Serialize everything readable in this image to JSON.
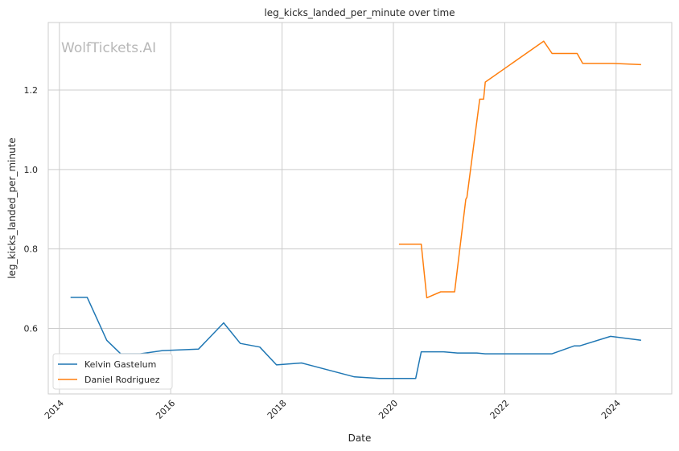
{
  "chart_data": {
    "type": "line",
    "title": "leg_kicks_landed_per_minute over time",
    "xlabel": "Date",
    "ylabel": "leg_kicks_landed_per_minute",
    "watermark": "WolfTickets.AI",
    "xlim": [
      2013.8,
      2025.0
    ],
    "ylim": [
      0.435,
      1.37
    ],
    "x_ticks": [
      2014,
      2016,
      2018,
      2020,
      2022,
      2024
    ],
    "x_tick_labels": [
      "2014",
      "2016",
      "2018",
      "2020",
      "2022",
      "2024"
    ],
    "y_ticks": [
      0.6,
      0.8,
      1.0,
      1.2
    ],
    "y_tick_labels": [
      "0.6",
      "0.8",
      "1.0",
      "1.2"
    ],
    "grid": true,
    "legend_position": "lower-left",
    "series": [
      {
        "name": "Kelvin Gastelum",
        "color": "#1f77b4",
        "x": [
          2014.2,
          2014.5,
          2014.85,
          2015.1,
          2015.45,
          2015.85,
          2016.5,
          2016.95,
          2017.25,
          2017.6,
          2017.9,
          2018.35,
          2019.3,
          2019.75,
          2020.4,
          2020.5,
          2020.9,
          2021.15,
          2021.5,
          2021.65,
          2022.0,
          2022.85,
          2023.25,
          2023.35,
          2023.9,
          2024.45
        ],
        "y": [
          0.678,
          0.678,
          0.57,
          0.536,
          0.536,
          0.544,
          0.548,
          0.614,
          0.562,
          0.553,
          0.508,
          0.513,
          0.478,
          0.474,
          0.474,
          0.541,
          0.541,
          0.538,
          0.538,
          0.536,
          0.536,
          0.536,
          0.556,
          0.556,
          0.58,
          0.57
        ]
      },
      {
        "name": "Daniel Rodriguez",
        "color": "#ff7f0e",
        "x": [
          2020.1,
          2020.5,
          2020.6,
          2020.85,
          2021.1,
          2021.3,
          2021.32,
          2021.55,
          2021.62,
          2021.65,
          2022.7,
          2022.85,
          2023.3,
          2023.4,
          2023.95,
          2024.45
        ],
        "y": [
          0.812,
          0.812,
          0.677,
          0.692,
          0.692,
          0.925,
          0.93,
          1.177,
          1.177,
          1.22,
          1.323,
          1.292,
          1.292,
          1.267,
          1.267,
          1.264
        ]
      }
    ]
  }
}
